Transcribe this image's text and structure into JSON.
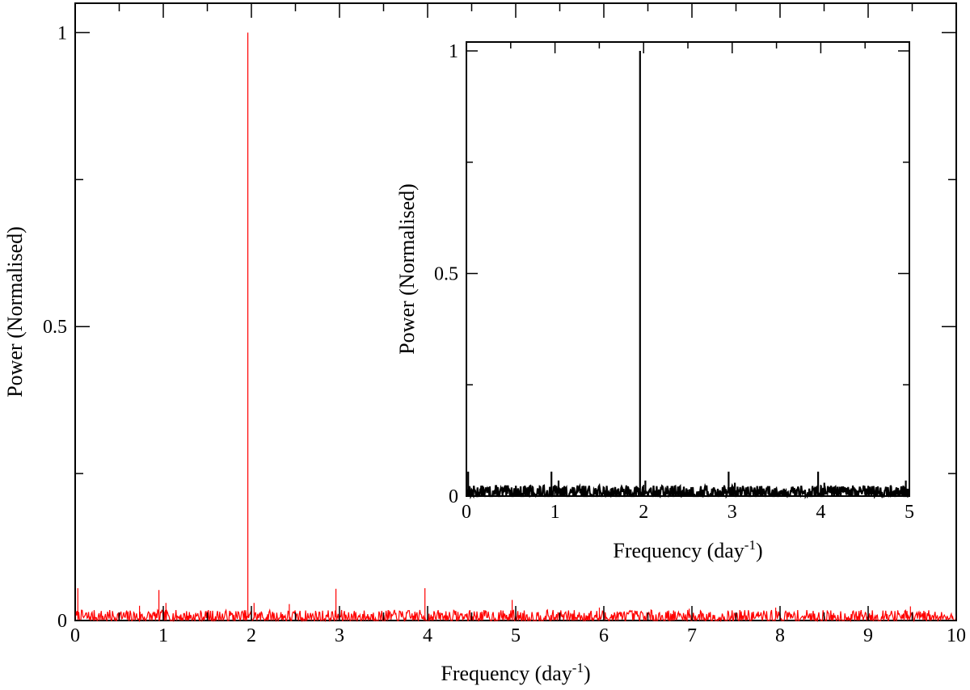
{
  "chart_data": [
    {
      "type": "line",
      "role": "main",
      "xlabel": "Frequency (day",
      "xlabel_exponent": "-1",
      "xlabel_suffix": ")",
      "ylabel": "Power (Normalised)",
      "xlim": [
        0,
        10
      ],
      "ylim": [
        0,
        1.05
      ],
      "xticks": [
        0,
        1,
        2,
        3,
        4,
        5,
        6,
        7,
        8,
        9,
        10
      ],
      "xtick_labels": [
        "0",
        "1",
        "2",
        "3",
        "4",
        "5",
        "6",
        "7",
        "8",
        "9",
        "10"
      ],
      "yticks": [
        0,
        0.5,
        1
      ],
      "ytick_labels": [
        "0",
        "0.5",
        "1"
      ],
      "y_minor_ticks": [
        0.25,
        0.75
      ],
      "grid": false,
      "legend": "none",
      "series": [
        {
          "color": "#ff0000",
          "noise_level": 0.006,
          "noise_amplitude": 0.012,
          "peaks": [
            {
              "x": 0.03,
              "y": 0.055
            },
            {
              "x": 0.73,
              "y": 0.025
            },
            {
              "x": 0.95,
              "y": 0.052
            },
            {
              "x": 1.03,
              "y": 0.03
            },
            {
              "x": 1.96,
              "y": 1.0
            },
            {
              "x": 2.03,
              "y": 0.03
            },
            {
              "x": 2.43,
              "y": 0.028
            },
            {
              "x": 2.96,
              "y": 0.054
            },
            {
              "x": 3.97,
              "y": 0.055
            },
            {
              "x": 4.96,
              "y": 0.035
            },
            {
              "x": 5.95,
              "y": 0.022
            },
            {
              "x": 6.97,
              "y": 0.02
            },
            {
              "x": 7.95,
              "y": 0.022
            },
            {
              "x": 9.48,
              "y": 0.024
            }
          ]
        }
      ]
    },
    {
      "type": "line",
      "role": "inset",
      "xlabel": "Frequency (day",
      "xlabel_exponent": "-1",
      "xlabel_suffix": ")",
      "ylabel": "Power (Normalised)",
      "xlim": [
        0,
        5
      ],
      "ylim": [
        0,
        1.02
      ],
      "xticks": [
        0,
        1,
        2,
        3,
        4,
        5
      ],
      "xtick_labels": [
        "0",
        "1",
        "2",
        "3",
        "4",
        "5"
      ],
      "yticks": [
        0,
        0.5,
        1
      ],
      "ytick_labels": [
        "0",
        "0.5",
        "1"
      ],
      "y_minor_ticks": [
        0.25,
        0.75
      ],
      "grid": false,
      "legend": "none",
      "series": [
        {
          "color": "#000000",
          "noise_level": 0.008,
          "noise_amplitude": 0.016,
          "peaks": [
            {
              "x": 0.02,
              "y": 0.055
            },
            {
              "x": 0.96,
              "y": 0.055
            },
            {
              "x": 1.04,
              "y": 0.035
            },
            {
              "x": 1.96,
              "y": 1.0
            },
            {
              "x": 2.02,
              "y": 0.035
            },
            {
              "x": 2.96,
              "y": 0.055
            },
            {
              "x": 3.03,
              "y": 0.03
            },
            {
              "x": 3.97,
              "y": 0.055
            },
            {
              "x": 4.04,
              "y": 0.03
            },
            {
              "x": 4.96,
              "y": 0.035
            }
          ]
        }
      ]
    }
  ]
}
